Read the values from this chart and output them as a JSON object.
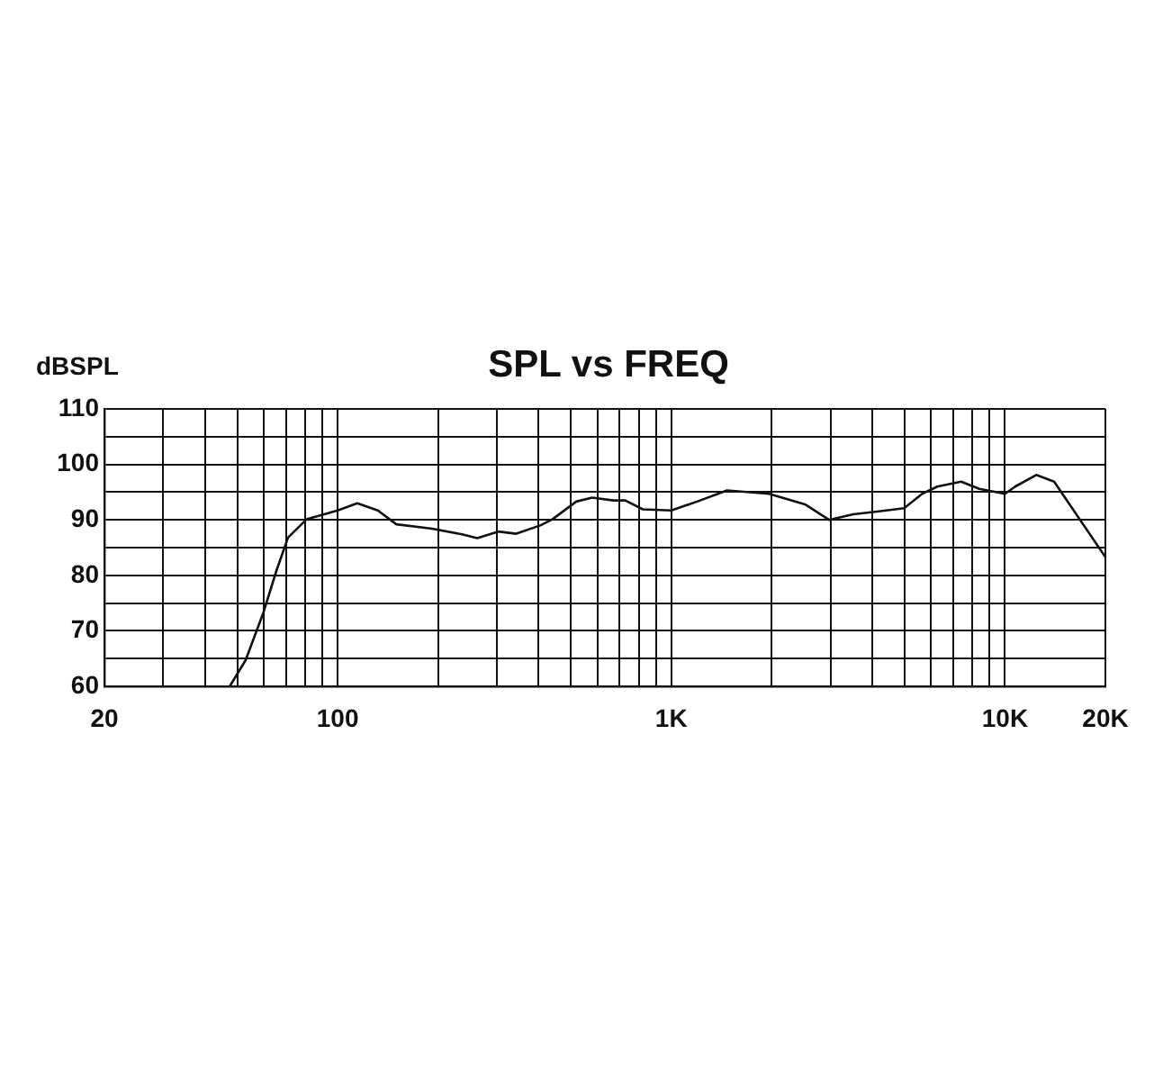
{
  "chart_data": {
    "type": "line",
    "title": "SPL vs FREQ",
    "ylabel": "dBSPL",
    "log": "x",
    "grid": true,
    "series": [
      {
        "color": "#111111",
        "x": [
          47.5,
          53,
          60,
          65.6,
          71,
          80.7,
          100,
          114.5,
          132,
          150,
          192,
          236,
          262,
          303,
          343,
          405,
          440,
          519,
          579,
          670,
          728,
          822,
          1000,
          1195,
          1469,
          1963,
          2515,
          2970,
          3509,
          4138,
          4988,
          5649,
          6268,
          7394,
          8372,
          10000,
          10730,
          12410,
          14040,
          20000
        ],
        "values": [
          60,
          64.7,
          73.4,
          80.9,
          86.8,
          90.1,
          91.7,
          93,
          91.7,
          89.2,
          88.4,
          87.4,
          86.7,
          87.9,
          87.5,
          89,
          90.1,
          93.3,
          94,
          93.5,
          93.5,
          91.9,
          91.7,
          93.3,
          95.3,
          94.7,
          92.8,
          90,
          91,
          91.5,
          92.1,
          94.7,
          96,
          96.9,
          95.6,
          94.7,
          96,
          98.1,
          96.9,
          83.3
        ]
      }
    ],
    "xlim": [
      20,
      20000
    ],
    "xticks": [
      20,
      {
        "value": 30,
        "label": null
      },
      {
        "value": 40,
        "label": null
      },
      {
        "value": 50,
        "label": null
      },
      {
        "value": 60,
        "label": null
      },
      {
        "value": 70,
        "label": null
      },
      {
        "value": 80,
        "label": null
      },
      {
        "value": 90,
        "label": null
      },
      100,
      {
        "value": 200,
        "label": null
      },
      {
        "value": 300,
        "label": null
      },
      {
        "value": 400,
        "label": null
      },
      {
        "value": 500,
        "label": null
      },
      {
        "value": 600,
        "label": null
      },
      {
        "value": 700,
        "label": null
      },
      {
        "value": 800,
        "label": null
      },
      {
        "value": 900,
        "label": null
      },
      {
        "value": 1000,
        "label": "1K"
      },
      {
        "value": 2000,
        "label": null
      },
      {
        "value": 3000,
        "label": null
      },
      {
        "value": 4000,
        "label": null
      },
      {
        "value": 5000,
        "label": null
      },
      {
        "value": 6000,
        "label": null
      },
      {
        "value": 7000,
        "label": null
      },
      {
        "value": 8000,
        "label": null
      },
      {
        "value": 9000,
        "label": null
      },
      {
        "value": 10000,
        "label": "10K"
      },
      {
        "value": 20000,
        "label": "20K"
      }
    ],
    "ylim": [
      60,
      110
    ],
    "yticks": [
      60,
      {
        "value": 65,
        "label": null
      },
      70,
      {
        "value": 75,
        "label": null
      },
      80,
      {
        "value": 85,
        "label": null
      },
      90,
      {
        "value": 95,
        "label": null
      },
      100,
      {
        "value": 105,
        "label": null
      },
      110
    ]
  }
}
